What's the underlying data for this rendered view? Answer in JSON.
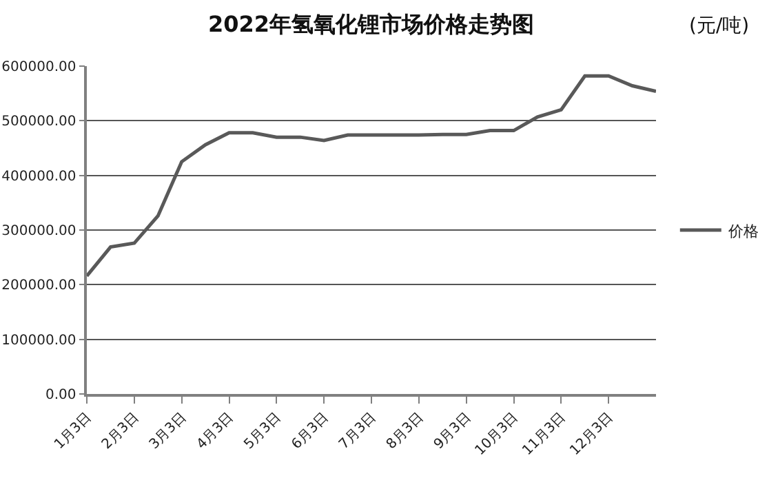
{
  "chart_data": {
    "type": "line",
    "title": "2022年氢氧化锂市场价格走势图",
    "subtitle": "(元/吨)",
    "categories": [
      "1月3日",
      null,
      "2月3日",
      null,
      "3月3日",
      null,
      "4月3日",
      null,
      "5月3日",
      null,
      "6月3日",
      null,
      "7月3日",
      null,
      "8月3日",
      null,
      "9月3日",
      null,
      "10月3日",
      null,
      "11月3日",
      null,
      "12月3日",
      null,
      null
    ],
    "series": [
      {
        "name": "价格",
        "color": "#595959",
        "values": [
          216000,
          269000,
          276000,
          326000,
          425000,
          456000,
          478000,
          478000,
          470000,
          470000,
          464000,
          474000,
          474000,
          474000,
          474000,
          475000,
          475000,
          482000,
          482000,
          507000,
          520000,
          582000,
          582000,
          564000,
          554000
        ]
      }
    ],
    "ylim": [
      0,
      600000
    ],
    "yticks": [
      {
        "value": 0,
        "label": "0.00"
      },
      {
        "value": 100000,
        "label": "100000.00"
      },
      {
        "value": 200000,
        "label": "200000.00"
      },
      {
        "value": 300000,
        "label": "300000.00"
      },
      {
        "value": 400000,
        "label": "400000.00"
      },
      {
        "value": 500000,
        "label": "500000.00"
      },
      {
        "value": 600000,
        "label": "600000.00"
      }
    ],
    "grid": "y",
    "legend": "right",
    "marker": "none",
    "line_style": "solid"
  }
}
